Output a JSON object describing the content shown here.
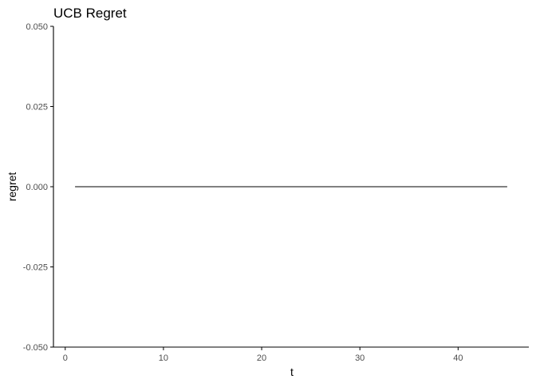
{
  "chart_data": {
    "type": "line",
    "title": "UCB Regret",
    "xlabel": "t",
    "ylabel": "regret",
    "xlim": [
      -1.2,
      47.2
    ],
    "ylim": [
      -0.05,
      0.05
    ],
    "x_ticks": [
      0,
      10,
      20,
      30,
      40
    ],
    "x_tick_labels": [
      "0",
      "10",
      "20",
      "30",
      "40"
    ],
    "y_ticks": [
      0.05,
      0.025,
      0.0,
      -0.025,
      -0.05
    ],
    "y_tick_labels": [
      "0.050",
      "0.025",
      "0.000",
      "-0.025",
      "-0.050"
    ],
    "grid": false,
    "legend": "none",
    "colors": {
      "line": "#000000",
      "axis": "#000000",
      "tick_text": "#4d4d4d"
    },
    "series": [
      {
        "x": [
          1,
          2,
          3,
          4,
          5,
          6,
          7,
          8,
          9,
          10,
          11,
          12,
          13,
          14,
          15,
          16,
          17,
          18,
          19,
          20,
          21,
          22,
          23,
          24,
          25,
          26,
          27,
          28,
          29,
          30,
          31,
          32,
          33,
          34,
          35,
          36,
          37,
          38,
          39,
          40,
          41,
          42,
          43,
          44,
          45
        ],
        "values": [
          0,
          0,
          0,
          0,
          0,
          0,
          0,
          0,
          0,
          0,
          0,
          0,
          0,
          0,
          0,
          0,
          0,
          0,
          0,
          0,
          0,
          0,
          0,
          0,
          0,
          0,
          0,
          0,
          0,
          0,
          0,
          0,
          0,
          0,
          0,
          0,
          0,
          0,
          0,
          0,
          0,
          0,
          0,
          0,
          0
        ]
      }
    ]
  }
}
